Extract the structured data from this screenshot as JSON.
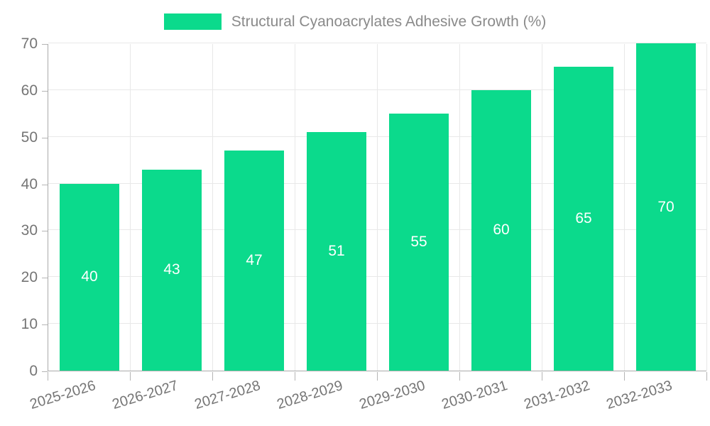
{
  "chart_data": {
    "type": "bar",
    "title": "Structural Cyanoacrylates Adhesive Growth (%)",
    "legend_entries": [
      "Structural Cyanoacrylates Adhesive Growth (%)"
    ],
    "legend_position": "top",
    "categories": [
      "2025-2026",
      "2026-2027",
      "2027-2028",
      "2028-2029",
      "2029-2030",
      "2030-2031",
      "2031-2032",
      "2032-2033"
    ],
    "series": [
      {
        "name": "Structural Cyanoacrylates Adhesive Growth (%)",
        "values": [
          40,
          43,
          47,
          51,
          55,
          60,
          65,
          70
        ]
      }
    ],
    "bar_value_labels": [
      "40",
      "43",
      "47",
      "51",
      "55",
      "60",
      "65",
      "70"
    ],
    "xlabel": "",
    "ylabel": "",
    "ylim": [
      0,
      70
    ],
    "yticks": [
      0,
      10,
      20,
      30,
      40,
      50,
      60,
      70
    ],
    "grid": "on",
    "x_label_rotation_deg": -17,
    "colors": {
      "bar_fill": "#0bda8c",
      "bar_value_text": "#ffffff",
      "axis_line": "#aaaaaa",
      "tick_mark": "#b5b5b5",
      "grid_line": "#e8e8e8",
      "axis_tick_label": "#757575",
      "legend_text": "#8a8a8a",
      "background": "#ffffff"
    }
  }
}
